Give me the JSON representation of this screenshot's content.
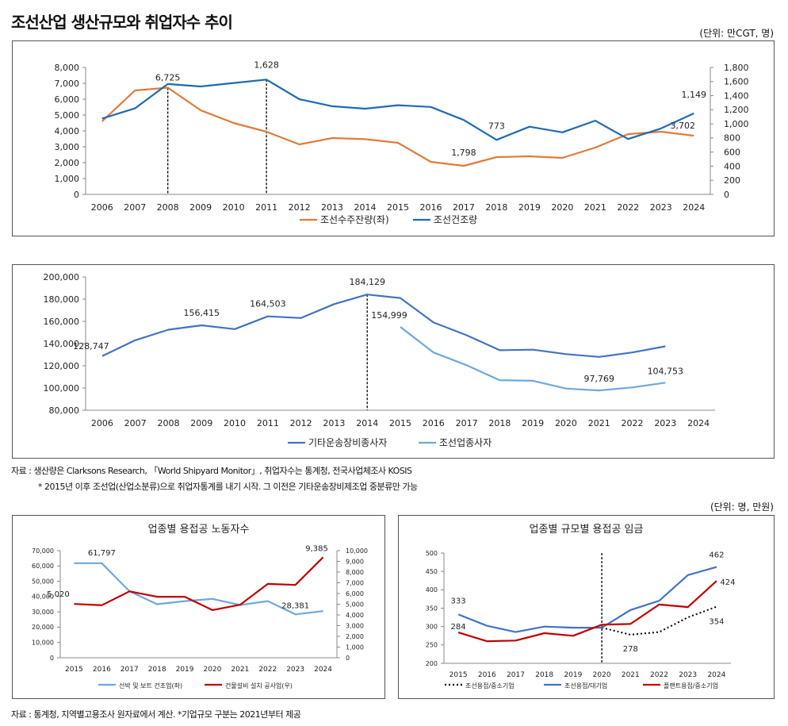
{
  "header": {
    "title": "조선산업 생산규모와 취업자수 추이",
    "unit_top": "(단위: 만CGT, 명)",
    "unit_bottom": "(단위: 명, 만원)"
  },
  "notes": {
    "source1": "자료 : 생산량은 Clarksons Research, 「World Shipyard Monitor」, 취업자수는 통계청, 전국사업체조사 KOSIS",
    "source1b": "* 2015년 이후 조선업(산업소분류)으로 취업자통계를 내기 시작. 그 이전은 기타운송장비제조업 중분류만 가능",
    "source2": "자료 : 통계청, 지역별고용조사 원자료에서 계산. *기업규모 구분는 2021년부터 제공"
  },
  "colors": {
    "orange": "#E07B39",
    "blue": "#1F6BB0",
    "blue2": "#4472C4",
    "lightblue": "#6FA8DC",
    "red": "#C00000",
    "grid_axis": "#888888"
  },
  "chart_data": [
    {
      "id": "chart1",
      "type": "line",
      "title": "",
      "categories": [
        "2006",
        "2007",
        "2008",
        "2009",
        "2010",
        "2011",
        "2012",
        "2013",
        "2014",
        "2015",
        "2016",
        "2017",
        "2018",
        "2019",
        "2020",
        "2021",
        "2022",
        "2023",
        "2024"
      ],
      "left_ylim": [
        0,
        8000
      ],
      "left_ticks": [
        "0",
        "1,000",
        "2,000",
        "3,000",
        "4,000",
        "5,000",
        "6,000",
        "7,000",
        "8,000"
      ],
      "right_ylim": [
        0,
        1800
      ],
      "right_ticks": [
        "0",
        "200",
        "400",
        "600",
        "800",
        "1,000",
        "1,200",
        "1,400",
        "1,600",
        "1,800"
      ],
      "series": [
        {
          "name": "조선수주잔량(좌)",
          "axis": "left",
          "color": "#E07B39",
          "values": [
            4600,
            6550,
            6725,
            5300,
            4500,
            3950,
            3150,
            3550,
            3480,
            3250,
            2050,
            1798,
            2350,
            2400,
            2300,
            2950,
            3800,
            3950,
            3702
          ]
        },
        {
          "name": "조선건조량",
          "axis": "right",
          "color": "#1F6BB0",
          "values": [
            1075,
            1220,
            1565,
            1530,
            1580,
            1628,
            1350,
            1250,
            1215,
            1265,
            1240,
            1055,
            773,
            960,
            880,
            1045,
            785,
            935,
            1149
          ]
        }
      ],
      "labels": [
        {
          "text": "6,725",
          "x": "2008"
        },
        {
          "text": "1,628",
          "x": "2011"
        },
        {
          "text": "773",
          "x": "2018"
        },
        {
          "text": "1,798",
          "x": "2017"
        },
        {
          "text": "1,149",
          "x": "2024"
        },
        {
          "text": "3,702",
          "x": "2024"
        }
      ],
      "markers": [
        "2008",
        "2011"
      ],
      "legend_position": "bottom"
    },
    {
      "id": "chart2",
      "type": "line",
      "title": "",
      "categories": [
        "2006",
        "2007",
        "2008",
        "2009",
        "2010",
        "2011",
        "2012",
        "2013",
        "2014",
        "2015",
        "2016",
        "2017",
        "2018",
        "2019",
        "2020",
        "2021",
        "2022",
        "2023",
        "2024"
      ],
      "ylim": [
        80000,
        200000
      ],
      "yticks": [
        "80,000",
        "100,000",
        "120,000",
        "140,000",
        "160,000",
        "180,000",
        "200,000"
      ],
      "series": [
        {
          "name": "기타운송장비종사자",
          "color": "#4472C4",
          "values": [
            128747,
            143000,
            152500,
            156415,
            153000,
            164503,
            163000,
            175500,
            184129,
            181000,
            159000,
            147500,
            134000,
            134500,
            130500,
            128000,
            132000,
            137500,
            null
          ]
        },
        {
          "name": "조선업종사자",
          "color": "#6FA8DC",
          "values": [
            null,
            null,
            null,
            null,
            null,
            null,
            null,
            null,
            null,
            154999,
            132000,
            120500,
            107000,
            106500,
            99500,
            97769,
            100500,
            104753,
            null
          ]
        }
      ],
      "labels": [
        {
          "text": "128,747",
          "x": "2006"
        },
        {
          "text": "156,415",
          "x": "2009"
        },
        {
          "text": "164,503",
          "x": "2011"
        },
        {
          "text": "184,129",
          "x": "2014"
        },
        {
          "text": "154,999",
          "x": "2015"
        },
        {
          "text": "97,769",
          "x": "2021"
        },
        {
          "text": "104,753",
          "x": "2023"
        }
      ],
      "markers": [
        "2014"
      ],
      "legend_position": "bottom"
    },
    {
      "id": "chart3",
      "type": "line",
      "title": "업종별 용접공 노동자수",
      "categories": [
        "2015",
        "2016",
        "2017",
        "2018",
        "2019",
        "2020",
        "2021",
        "2022",
        "2023",
        "2024"
      ],
      "left_ylim": [
        0,
        70000
      ],
      "left_ticks": [
        "0",
        "10,000",
        "20,000",
        "30,000",
        "40,000",
        "50,000",
        "60,000",
        "70,000"
      ],
      "right_ylim": [
        0,
        10000
      ],
      "right_ticks": [
        "0",
        "1,000",
        "2,000",
        "3,000",
        "4,000",
        "5,000",
        "6,000",
        "7,000",
        "8,000",
        "9,000",
        "10,000"
      ],
      "series": [
        {
          "name": "선박 및 보트 건조업(좌)",
          "axis": "left",
          "color": "#6FA8DC",
          "values": [
            61797,
            61797,
            43500,
            35000,
            37000,
            38500,
            34500,
            37000,
            28381,
            30500
          ]
        },
        {
          "name": "건물설비 설치 공사업(우)",
          "axis": "right",
          "color": "#C00000",
          "values": [
            5020,
            4900,
            6200,
            5700,
            5700,
            4450,
            4950,
            6900,
            6800,
            9385
          ]
        }
      ],
      "labels": [
        {
          "text": "61,797",
          "x": "2016"
        },
        {
          "text": "5,020",
          "x": "2015"
        },
        {
          "text": "28,381",
          "x": "2023"
        },
        {
          "text": "9,385",
          "x": "2024"
        }
      ],
      "legend_position": "bottom"
    },
    {
      "id": "chart4",
      "type": "line",
      "title": "업종별 규모별 용접공 임금",
      "categories": [
        "2015",
        "2016",
        "2017",
        "2018",
        "2019",
        "2020",
        "2021",
        "2022",
        "2023",
        "2024"
      ],
      "ylim": [
        200,
        500
      ],
      "yticks": [
        "200",
        "250",
        "300",
        "350",
        "400",
        "450",
        "500"
      ],
      "series": [
        {
          "name": "조선용접/중소기업",
          "color": "#000000",
          "dashed": true,
          "values": [
            null,
            null,
            null,
            null,
            null,
            297,
            278,
            285,
            325,
            354
          ]
        },
        {
          "name": "조선용접/대기업",
          "color": "#4472C4",
          "values": [
            333,
            302,
            285,
            300,
            297,
            297,
            345,
            370,
            440,
            462
          ]
        },
        {
          "name": "플랜트용접/중소기업",
          "color": "#C00000",
          "values": [
            284,
            260,
            262,
            282,
            275,
            305,
            307,
            360,
            353,
            424
          ]
        }
      ],
      "labels": [
        {
          "text": "333",
          "x": "2015"
        },
        {
          "text": "284",
          "x": "2015"
        },
        {
          "text": "278",
          "x": "2021"
        },
        {
          "text": "462",
          "x": "2024"
        },
        {
          "text": "424",
          "x": "2024"
        },
        {
          "text": "354",
          "x": "2024"
        }
      ],
      "markers": [
        "2020"
      ],
      "legend_position": "bottom"
    }
  ]
}
